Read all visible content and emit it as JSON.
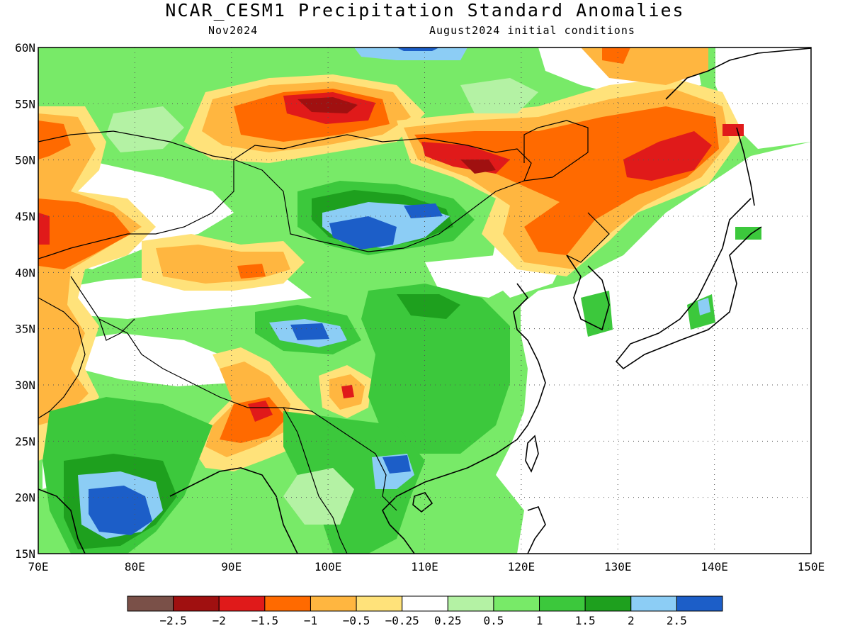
{
  "title": "NCAR_CESM1 Precipitation Standard Anomalies",
  "subtitle_left": "Nov2024",
  "subtitle_right": "August2024 initial conditions",
  "map": {
    "lon_labels": [
      "70E",
      "80E",
      "90E",
      "100E",
      "110E",
      "120E",
      "130E",
      "140E",
      "150E"
    ],
    "lat_labels": [
      "60N",
      "55N",
      "50N",
      "45N",
      "40N",
      "35N",
      "30N",
      "25N",
      "20N",
      "15N"
    ],
    "lon_range": [
      70,
      150
    ],
    "lat_range": [
      15,
      60
    ],
    "grid": "dotted"
  },
  "colorbar": {
    "colors": [
      "#7a5048",
      "#a01010",
      "#e01a1a",
      "#ff6a00",
      "#ffb640",
      "#ffe27a",
      "#ffffff",
      "#b4f2a4",
      "#78ea68",
      "#3cc83c",
      "#1ea01e",
      "#8ccdf5",
      "#1c5ec8"
    ],
    "labels": [
      "-2.5",
      "-2",
      "-1.5",
      "-1",
      "-0.5",
      "-0.25",
      "0.25",
      "0.5",
      "1",
      "1.5",
      "2",
      "2.5"
    ]
  }
}
